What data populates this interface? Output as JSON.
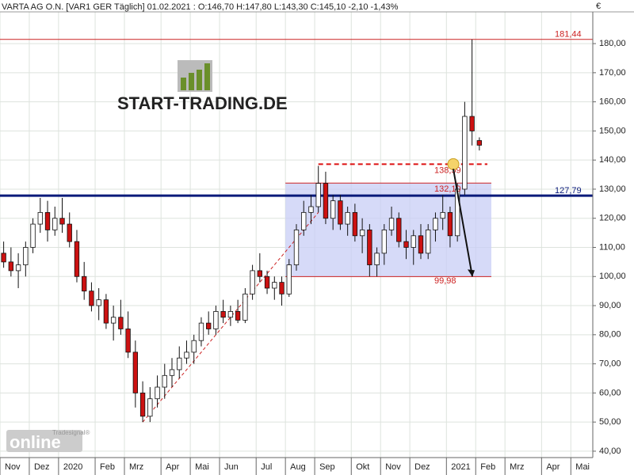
{
  "chart_data": {
    "type": "candlestick",
    "header": "VARTA AG O.N. [VAR1 GER  Täglich] 01.02.2021 : O:146,70 H:147,80 L:143,30 C:145,10 -2,10 -1,43%",
    "currency": "€",
    "watermark": "START-TRADING.DE",
    "logo": "online",
    "logo_sub": "Tradesignal®",
    "up_color": "#ffffff",
    "down_color": "#cc1111",
    "grid": true,
    "categories": [
      "Nov",
      null,
      null,
      null,
      "Dez",
      null,
      null,
      null,
      "2020",
      null,
      null,
      null,
      null,
      "Feb",
      null,
      null,
      null,
      "Mrz",
      null,
      null,
      null,
      null,
      "Apr",
      null,
      null,
      null,
      "Mai",
      null,
      null,
      null,
      "Jun",
      null,
      null,
      null,
      null,
      "Jul",
      null,
      null,
      null,
      "Aug",
      null,
      null,
      null,
      "Sep",
      null,
      null,
      null,
      null,
      "Okt",
      null,
      null,
      null,
      "Nov",
      null,
      null,
      null,
      "Dez",
      null,
      null,
      null,
      null,
      "2021",
      null,
      null,
      null,
      "Feb",
      null,
      null,
      null,
      "Mrz",
      null,
      null,
      null,
      null,
      "Apr",
      null,
      null,
      null,
      "Mai",
      null,
      null
    ],
    "open": [
      108,
      105,
      102,
      104,
      110,
      118,
      122,
      116,
      120,
      118,
      112,
      100,
      95,
      90,
      92,
      84,
      86,
      82,
      74,
      60,
      52,
      58,
      62,
      66,
      68,
      72,
      74,
      78,
      84,
      82,
      88,
      86,
      88,
      85,
      94,
      102,
      100,
      96,
      98,
      94,
      104,
      116,
      122,
      124,
      132,
      120,
      126,
      118,
      122,
      114,
      116,
      104,
      108,
      116,
      120,
      112,
      110,
      114,
      108,
      116,
      120,
      122,
      114,
      130,
      155,
      146.7,
      null,
      null,
      null,
      null,
      null,
      null,
      null,
      null,
      null,
      null,
      null,
      null,
      null,
      null,
      null
    ],
    "high": [
      112,
      110,
      108,
      112,
      120,
      127,
      126,
      124,
      127,
      122,
      116,
      105,
      98,
      96,
      94,
      90,
      92,
      88,
      78,
      64,
      62,
      66,
      70,
      72,
      76,
      78,
      80,
      86,
      88,
      90,
      92,
      90,
      92,
      96,
      104,
      108,
      102,
      100,
      100,
      106,
      118,
      126,
      128,
      138,
      136,
      128,
      128,
      124,
      125,
      120,
      118,
      110,
      118,
      124,
      122,
      116,
      116,
      118,
      118,
      122,
      128,
      124,
      132,
      160,
      181.44,
      147.8,
      null,
      null,
      null,
      null,
      null,
      null,
      null,
      null,
      null,
      null,
      null,
      null,
      null,
      null,
      null
    ],
    "low": [
      103,
      100,
      96,
      100,
      108,
      115,
      112,
      114,
      115,
      110,
      98,
      92,
      88,
      85,
      82,
      78,
      80,
      72,
      55,
      50,
      50,
      55,
      58,
      62,
      65,
      70,
      70,
      76,
      80,
      80,
      84,
      83,
      84,
      84,
      92,
      98,
      94,
      92,
      90,
      93,
      102,
      114,
      118,
      122,
      118,
      116,
      116,
      114,
      112,
      108,
      100,
      100,
      104,
      114,
      110,
      106,
      104,
      106,
      106,
      112,
      116,
      110,
      112,
      128,
      145,
      143.3,
      null,
      null,
      null,
      null,
      null,
      null,
      null,
      null,
      null,
      null,
      null,
      null,
      null,
      null,
      null
    ],
    "close": [
      105,
      102,
      104,
      110,
      118,
      122,
      116,
      120,
      118,
      112,
      100,
      95,
      90,
      92,
      84,
      86,
      82,
      74,
      60,
      52,
      58,
      62,
      66,
      68,
      72,
      74,
      78,
      84,
      82,
      88,
      86,
      88,
      85,
      94,
      102,
      100,
      96,
      98,
      94,
      104,
      116,
      122,
      124,
      132,
      120,
      126,
      118,
      122,
      114,
      116,
      104,
      108,
      116,
      120,
      112,
      110,
      114,
      108,
      116,
      120,
      122,
      114,
      130,
      155,
      150,
      145.1,
      null,
      null,
      null,
      null,
      null,
      null,
      null,
      null,
      null,
      null,
      null,
      null,
      null,
      null,
      null
    ],
    "ylim": [
      37.8,
      190.9
    ],
    "yticks": [
      {
        "value": 40,
        "label": "40,00"
      },
      {
        "value": 50,
        "label": "50,00"
      },
      {
        "value": 60,
        "label": "60,00"
      },
      {
        "value": 70,
        "label": "70,00"
      },
      {
        "value": 80,
        "label": "80,00"
      },
      {
        "value": 90,
        "label": "90,00"
      },
      {
        "value": 100,
        "label": "100,00"
      },
      {
        "value": 110,
        "label": "110,00"
      },
      {
        "value": 120,
        "label": "120,00"
      },
      {
        "value": 130,
        "label": "130,00"
      },
      {
        "value": 140,
        "label": "140,00"
      },
      {
        "value": 150,
        "label": "150,00"
      },
      {
        "value": 160,
        "label": "160,00"
      },
      {
        "value": 170,
        "label": "170,00"
      },
      {
        "value": 180,
        "label": "180,00"
      }
    ],
    "levels": [
      {
        "value": 181.44,
        "label": "181,44",
        "color": "#cc2222",
        "style": "solid"
      },
      {
        "value": 138.59,
        "label": "138,59",
        "color": "#dd1111",
        "style": "dashed"
      },
      {
        "value": 132.1,
        "label": "132,10",
        "color": "#cc2222",
        "style": "solid"
      },
      {
        "value": 127.79,
        "label": "127,79",
        "color": "#0a1a7a",
        "style": "thick"
      },
      {
        "value": 99.98,
        "label": "99,98",
        "color": "#cc2222",
        "style": "solid"
      }
    ],
    "zone_color": "#c8cdf5"
  }
}
